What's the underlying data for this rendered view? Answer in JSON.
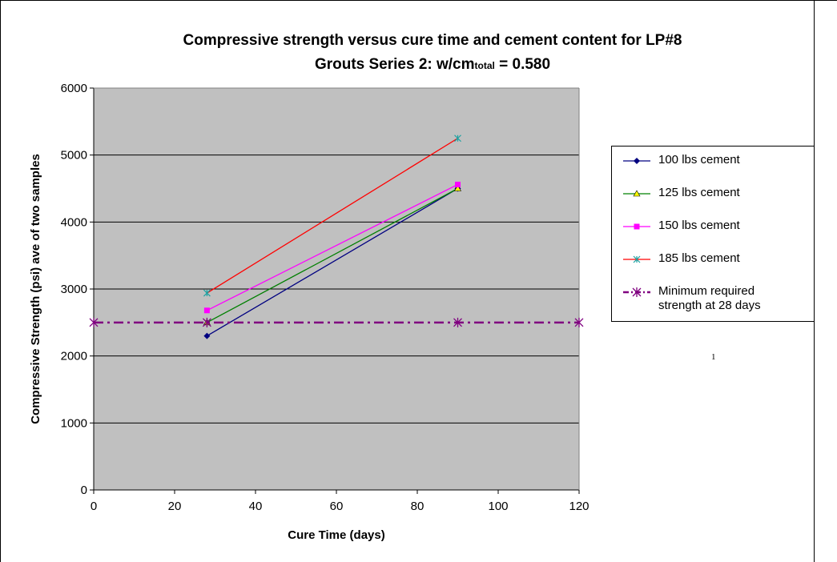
{
  "title": {
    "line1": "Compressive strength versus cure time and cement content for LP#8",
    "line2_prefix": "Grouts Series 2: w/cm",
    "line2_sub": "total",
    "line2_suffix": " = 0.580"
  },
  "stray_text": "1",
  "chart_data": {
    "type": "line",
    "title": "Compressive strength versus cure time and cement content for LP#8 Grouts Series 2: w/cm total = 0.580",
    "xlabel": "Cure Time (days)",
    "ylabel": "Compressive Strength (psi) ave of two samples",
    "xlim": [
      0,
      120
    ],
    "ylim": [
      0,
      6000
    ],
    "x_ticks": [
      0,
      20,
      40,
      60,
      80,
      100,
      120
    ],
    "y_ticks": [
      0,
      1000,
      2000,
      3000,
      4000,
      5000,
      6000
    ],
    "grid": "horizontal major gridlines",
    "plot_background": "#c0c0c0",
    "legend_position": "right",
    "series": [
      {
        "name": "100 lbs cement",
        "color": "#000080",
        "marker": "diamond",
        "x": [
          28,
          90
        ],
        "y": [
          2300,
          4500
        ],
        "line": "solid"
      },
      {
        "name": "125 lbs cement",
        "color": "#008000",
        "marker": "triangle",
        "x": [
          28,
          90
        ],
        "y": [
          2500,
          4500
        ],
        "line": "solid"
      },
      {
        "name": "150 lbs cement",
        "color": "#ff00ff",
        "marker": "square",
        "x": [
          28,
          90
        ],
        "y": [
          2680,
          4560
        ],
        "line": "solid"
      },
      {
        "name": "185 lbs cement",
        "color": "#ff0000",
        "marker": "star",
        "x": [
          28,
          90
        ],
        "y": [
          2940,
          5250
        ],
        "line": "solid"
      },
      {
        "name": "Minimum required strength at 28 days",
        "color": "#800080",
        "marker": "asterisk",
        "x": [
          0,
          28,
          90,
          120
        ],
        "y": [
          2500,
          2500,
          2500,
          2500
        ],
        "line": "dashdot"
      }
    ]
  }
}
